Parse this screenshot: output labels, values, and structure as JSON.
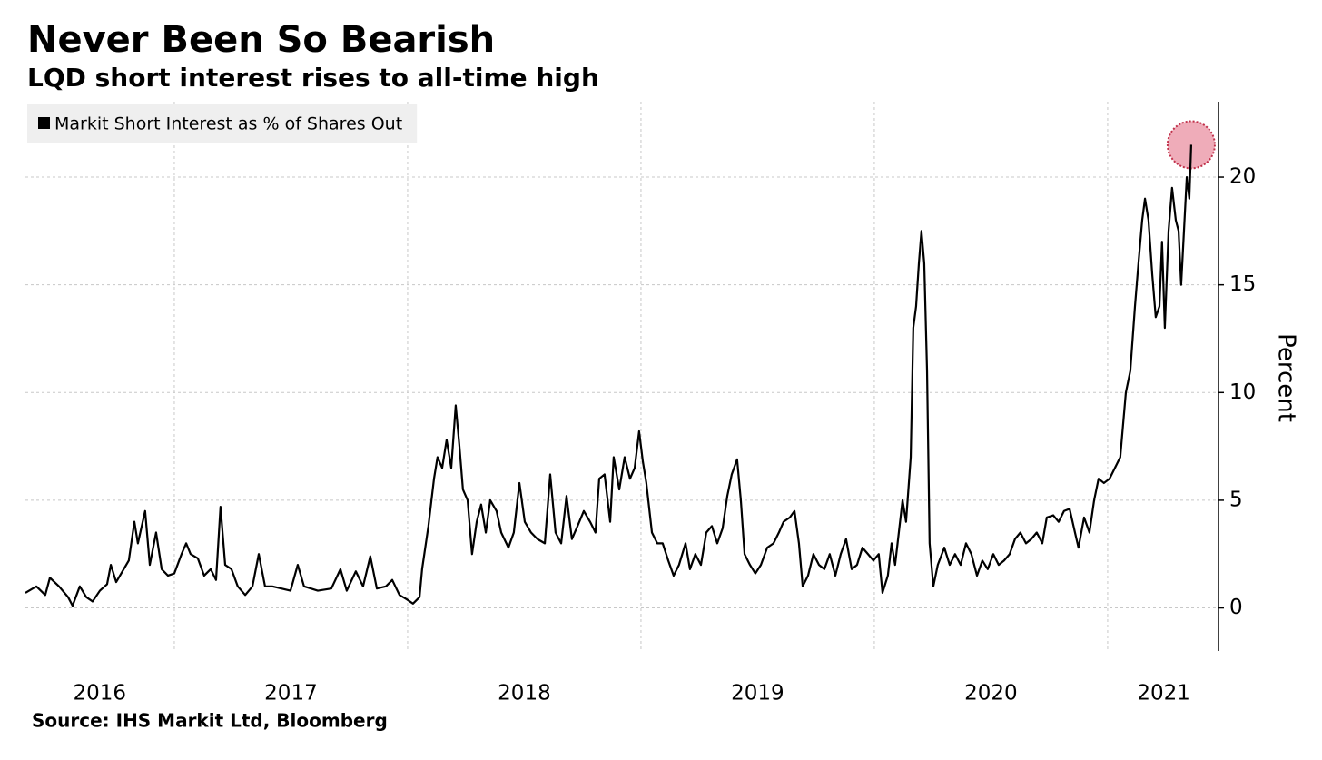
{
  "chart_data": {
    "type": "line",
    "title": "Never Been So Bearish",
    "subtitle": "LQD short interest rises to all-time high",
    "source": "Source: IHS Markit Ltd, Bloomberg",
    "y_label": "Percent",
    "x": [
      2016.362,
      2016.409,
      2016.447,
      2016.467,
      2016.506,
      2016.545,
      2016.564,
      2016.595,
      2016.623,
      2016.65,
      2016.681,
      2016.712,
      2016.728,
      2016.751,
      2016.778,
      2016.805,
      2016.829,
      2016.844,
      2016.875,
      2016.895,
      2016.922,
      2016.946,
      2016.973,
      2017.0,
      2017.031,
      2017.051,
      2017.07,
      2017.101,
      2017.128,
      2017.156,
      2017.179,
      2017.198,
      2017.218,
      2017.245,
      2017.272,
      2017.304,
      2017.335,
      2017.362,
      2017.389,
      2017.42,
      2017.459,
      2017.498,
      2017.529,
      2017.556,
      2017.615,
      2017.673,
      2017.712,
      2017.739,
      2017.778,
      2017.809,
      2017.84,
      2017.868,
      2017.907,
      2017.934,
      2017.965,
      2017.996,
      2018.023,
      2018.051,
      2018.062,
      2018.089,
      2018.113,
      2018.128,
      2018.148,
      2018.167,
      2018.187,
      2018.206,
      2018.222,
      2018.237,
      2018.257,
      2018.276,
      2018.296,
      2018.315,
      2018.335,
      2018.354,
      2018.381,
      2018.401,
      2018.432,
      2018.455,
      2018.479,
      2018.502,
      2018.529,
      2018.556,
      2018.588,
      2018.611,
      2018.634,
      2018.658,
      2018.681,
      2018.704,
      2018.728,
      2018.755,
      2018.782,
      2018.805,
      2018.821,
      2018.844,
      2018.868,
      2018.883,
      2018.907,
      2018.93,
      2018.953,
      2018.973,
      2018.992,
      2019.008,
      2019.023,
      2019.047,
      2019.07,
      2019.093,
      2019.117,
      2019.14,
      2019.163,
      2019.191,
      2019.21,
      2019.233,
      2019.257,
      2019.28,
      2019.304,
      2019.327,
      2019.35,
      2019.37,
      2019.389,
      2019.412,
      2019.428,
      2019.444,
      2019.467,
      2019.49,
      2019.514,
      2019.541,
      2019.568,
      2019.591,
      2019.611,
      2019.638,
      2019.658,
      2019.677,
      2019.693,
      2019.716,
      2019.739,
      2019.763,
      2019.786,
      2019.809,
      2019.833,
      2019.856,
      2019.879,
      2019.903,
      2019.926,
      2019.949,
      2019.973,
      2019.996,
      2020.019,
      2020.035,
      2020.058,
      2020.074,
      2020.089,
      2020.105,
      2020.121,
      2020.136,
      2020.156,
      2020.167,
      2020.179,
      2020.191,
      2020.202,
      2020.214,
      2020.226,
      2020.237,
      2020.253,
      2020.272,
      2020.3,
      2020.323,
      2020.346,
      2020.37,
      2020.393,
      2020.416,
      2020.44,
      2020.463,
      2020.486,
      2020.51,
      2020.533,
      2020.556,
      2020.58,
      2020.603,
      2020.626,
      2020.65,
      2020.673,
      2020.696,
      2020.72,
      2020.739,
      2020.767,
      2020.79,
      2020.813,
      2020.837,
      2020.86,
      2020.875,
      2020.899,
      2020.922,
      2020.942,
      2020.961,
      2020.984,
      2021.008,
      2021.031,
      2021.054,
      2021.078,
      2021.097,
      2021.117,
      2021.132,
      2021.148,
      2021.16,
      2021.175,
      2021.191,
      2021.206,
      2021.222,
      2021.233,
      2021.245,
      2021.261,
      2021.276,
      2021.292,
      2021.304,
      2021.315,
      2021.327,
      2021.339,
      2021.35,
      2021.358
    ],
    "series": [
      {
        "name": "Markit Short Interest as % of Shares Out",
        "color": "#000000",
        "values": [
          0.7,
          1.0,
          0.6,
          1.4,
          1.0,
          0.5,
          0.1,
          1.0,
          0.5,
          0.3,
          0.8,
          1.1,
          2.0,
          1.2,
          1.7,
          2.2,
          4.0,
          3.0,
          4.5,
          2.0,
          3.5,
          1.8,
          1.5,
          1.6,
          2.5,
          3.0,
          2.5,
          2.3,
          1.5,
          1.8,
          1.3,
          4.7,
          2.0,
          1.8,
          1.0,
          0.6,
          1.0,
          2.5,
          1.0,
          1.0,
          0.9,
          0.8,
          2.0,
          1.0,
          0.8,
          0.9,
          1.8,
          0.8,
          1.7,
          1.0,
          2.4,
          0.9,
          1.0,
          1.3,
          0.6,
          0.4,
          0.2,
          0.5,
          1.8,
          3.8,
          6.0,
          7.0,
          6.5,
          7.8,
          6.5,
          9.4,
          7.5,
          5.5,
          5.0,
          2.5,
          4.0,
          4.8,
          3.5,
          5.0,
          4.5,
          3.5,
          2.8,
          3.5,
          5.8,
          4.0,
          3.5,
          3.2,
          3.0,
          6.2,
          3.5,
          3.0,
          5.2,
          3.2,
          3.8,
          4.5,
          4.0,
          3.5,
          6.0,
          6.2,
          4.0,
          7.0,
          5.5,
          7.0,
          6.0,
          6.5,
          8.2,
          6.8,
          5.8,
          3.5,
          3.0,
          3.0,
          2.2,
          1.5,
          2.0,
          3.0,
          1.8,
          2.5,
          2.0,
          3.5,
          3.8,
          3.0,
          3.7,
          5.2,
          6.2,
          6.9,
          5.0,
          2.5,
          2.0,
          1.6,
          2.0,
          2.8,
          3.0,
          3.5,
          4.0,
          4.2,
          4.5,
          3.0,
          1.0,
          1.5,
          2.5,
          2.0,
          1.8,
          2.5,
          1.5,
          2.5,
          3.2,
          1.8,
          2.0,
          2.8,
          2.5,
          2.2,
          2.5,
          0.7,
          1.5,
          3.0,
          2.0,
          3.5,
          5.0,
          4.0,
          7.0,
          13.0,
          14.0,
          16.0,
          17.5,
          16.0,
          11.0,
          3.0,
          1.0,
          2.0,
          2.8,
          2.0,
          2.5,
          2.0,
          3.0,
          2.5,
          1.5,
          2.2,
          1.8,
          2.5,
          2.0,
          2.2,
          2.5,
          3.2,
          3.5,
          3.0,
          3.2,
          3.5,
          3.0,
          4.2,
          4.3,
          4.0,
          4.5,
          4.6,
          3.5,
          2.8,
          4.2,
          3.5,
          5.0,
          6.0,
          5.8,
          6.0,
          6.5,
          7.0,
          10.0,
          11.0,
          14.0,
          16.0,
          18.0,
          19.0,
          18.0,
          15.5,
          13.5,
          14.0,
          17.0,
          13.0,
          17.5,
          19.5,
          18.0,
          17.5,
          15.0,
          17.5,
          20.0,
          19.0,
          21.5
        ]
      }
    ],
    "xlim": [
      2016.362,
      2021.475
    ],
    "xticks": [
      {
        "value": 2016.68,
        "label": "2016"
      },
      {
        "value": 2017.5,
        "label": "2017"
      },
      {
        "value": 2018.5,
        "label": "2018"
      },
      {
        "value": 2019.5,
        "label": "2019"
      },
      {
        "value": 2020.5,
        "label": "2020"
      },
      {
        "value": 2021.24,
        "label": "2021"
      }
    ],
    "x_grid": [
      2017,
      2018,
      2019,
      2020,
      2021
    ],
    "ylim": [
      -2,
      23.5
    ],
    "yticks": [
      0,
      5,
      10,
      15,
      20
    ],
    "grid": true,
    "legend": "top-left"
  }
}
